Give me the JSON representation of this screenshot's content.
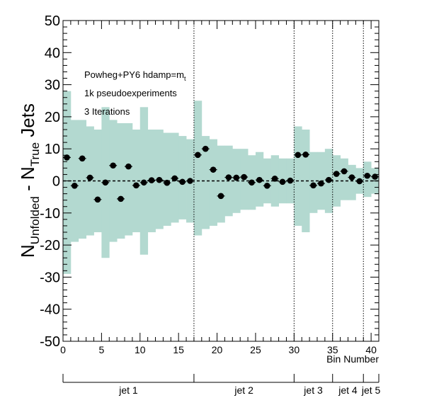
{
  "chart_data": {
    "type": "scatter",
    "ylabel": "N_{Unfolded} - N_{True} Jets",
    "xlabel": "Bin Number",
    "xlim": [
      0,
      41
    ],
    "ylim": [
      -50,
      50
    ],
    "x_ticks": [
      0,
      5,
      10,
      15,
      20,
      25,
      30,
      35,
      40
    ],
    "y_ticks": [
      -50,
      -40,
      -30,
      -20,
      -10,
      0,
      10,
      20,
      30,
      40,
      50
    ],
    "reference_line_y": 0,
    "annotations": [
      "Powheg+PY6 hdamp=m",
      "1k pseudoexperiments",
      "3 Iterations"
    ],
    "annotation_subscript": "t",
    "region_boundaries": [
      17,
      30,
      35,
      39
    ],
    "regions": [
      {
        "label": "jet 1",
        "from": 0,
        "to": 17
      },
      {
        "label": "jet 2",
        "from": 17,
        "to": 30
      },
      {
        "label": "jet 3",
        "from": 30,
        "to": 35
      },
      {
        "label": "jet 4",
        "from": 35,
        "to": 39
      },
      {
        "label": "jet 5",
        "from": 39,
        "to": 41
      }
    ],
    "series": [
      {
        "kind": "band",
        "color": "#b3d9d0",
        "bins": [
          [
            -29,
            28
          ],
          [
            -19,
            19
          ],
          [
            -18,
            19
          ],
          [
            -17,
            17
          ],
          [
            -16,
            16
          ],
          [
            -24,
            23
          ],
          [
            -19,
            19
          ],
          [
            -18,
            18
          ],
          [
            -17,
            18
          ],
          [
            -16,
            16
          ],
          [
            -23,
            23
          ],
          [
            -16,
            16
          ],
          [
            -15,
            16
          ],
          [
            -14,
            15
          ],
          [
            -13,
            15
          ],
          [
            -12,
            14
          ],
          [
            -13,
            13
          ],
          [
            -17,
            25
          ],
          [
            -15,
            14
          ],
          [
            -14,
            13
          ],
          [
            -13,
            11
          ],
          [
            -11,
            11
          ],
          [
            -10,
            10
          ],
          [
            -9,
            10
          ],
          [
            -9,
            8
          ],
          [
            -8,
            9
          ],
          [
            -7,
            7
          ],
          [
            -8,
            8
          ],
          [
            -7,
            7
          ],
          [
            -7,
            7
          ],
          [
            -14,
            17
          ],
          [
            -16,
            16
          ],
          [
            -10,
            9
          ],
          [
            -9,
            9
          ],
          [
            -10,
            10
          ],
          [
            -8,
            8
          ],
          [
            -6,
            7
          ],
          [
            -6,
            5
          ],
          [
            -4,
            4
          ],
          [
            -5,
            6
          ],
          [
            -4,
            4
          ]
        ]
      },
      {
        "kind": "points",
        "color": "#000000",
        "x": [
          0.5,
          1.5,
          2.5,
          3.5,
          4.5,
          5.5,
          6.5,
          7.5,
          8.5,
          9.5,
          10.5,
          11.5,
          12.5,
          13.5,
          14.5,
          15.5,
          16.5,
          17.5,
          18.5,
          19.5,
          20.5,
          21.5,
          22.5,
          23.5,
          24.5,
          25.5,
          26.5,
          27.5,
          28.5,
          29.5,
          30.5,
          31.5,
          32.5,
          33.5,
          34.5,
          35.5,
          36.5,
          37.5,
          38.5,
          39.5,
          40.5
        ],
        "y": [
          7.3,
          -1.5,
          7.0,
          1.0,
          -5.8,
          -0.5,
          4.8,
          -5.6,
          4.5,
          -1.4,
          -0.5,
          0.2,
          0.3,
          -0.6,
          0.8,
          -0.3,
          0.0,
          8.1,
          10.0,
          3.5,
          -4.7,
          1.1,
          1.0,
          1.2,
          -0.5,
          0.3,
          -1.5,
          0.7,
          -0.3,
          0.1,
          8.1,
          8.2,
          -1.4,
          -0.8,
          0.3,
          2.2,
          3.0,
          1.1,
          -0.1,
          1.6,
          1.3
        ]
      }
    ]
  }
}
